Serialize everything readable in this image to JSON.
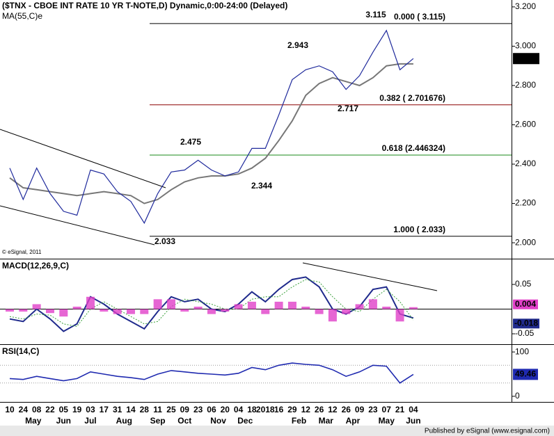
{
  "chart_data": [
    {
      "type": "line",
      "title": "($TNX - CBOE INT RATE 10 YR T-NOTE,D) Dynamic,0:00-24:00 (Delayed)",
      "credit": "© eSignal, 2011",
      "categories": [
        "10",
        "24",
        "08",
        "22",
        "05",
        "19",
        "03",
        "17",
        "31",
        "14",
        "28",
        "11",
        "25",
        "09",
        "23",
        "06",
        "20",
        "04",
        "18",
        "2018",
        "16",
        "29",
        "12",
        "26",
        "12",
        "26",
        "09",
        "23",
        "07",
        "21",
        "04"
      ],
      "months": [
        "May",
        "Jun",
        "Jul",
        "Aug",
        "Sep",
        "Oct",
        "Nov",
        "Dec",
        "Feb",
        "Mar",
        "Apr",
        "May",
        "Jun"
      ],
      "values": [
        2.38,
        2.22,
        2.38,
        2.25,
        2.16,
        2.14,
        2.37,
        2.35,
        2.26,
        2.21,
        2.1,
        2.25,
        2.36,
        2.37,
        2.42,
        2.37,
        2.34,
        2.36,
        2.48,
        2.48,
        2.65,
        2.83,
        2.88,
        2.9,
        2.87,
        2.78,
        2.85,
        2.97,
        3.08,
        2.88,
        2.937
      ],
      "color": "#1f2a9c",
      "series": [
        {
          "name": "MA(55,C)e",
          "color": "#777777",
          "values": [
            2.33,
            2.28,
            2.27,
            2.26,
            2.25,
            2.24,
            2.25,
            2.26,
            2.25,
            2.24,
            2.2,
            2.22,
            2.27,
            2.31,
            2.33,
            2.34,
            2.34,
            2.35,
            2.38,
            2.43,
            2.52,
            2.62,
            2.75,
            2.81,
            2.84,
            2.82,
            2.8,
            2.84,
            2.9,
            2.91,
            2.91
          ]
        }
      ],
      "ylim": [
        1.919,
        3.235
      ],
      "yticks": [
        {
          "value": 2.0,
          "label": "2.000"
        },
        {
          "value": 2.2,
          "label": "2.200"
        },
        {
          "value": 2.4,
          "label": "2.400"
        },
        {
          "value": 2.6,
          "label": "2.600"
        },
        {
          "value": 2.8,
          "label": "2.800"
        },
        {
          "value": 3.0,
          "label": "3.000"
        },
        {
          "value": 3.2,
          "label": "3.200"
        }
      ],
      "levels": [
        {
          "value": 3.115,
          "label": "0.000 ( 3.115)",
          "color": "#000000"
        },
        {
          "value": 2.701676,
          "label": "0.382 ( 2.701676)",
          "color": "#8b0000"
        },
        {
          "value": 2.446324,
          "label": "0.618 (2.446324)",
          "color": "#1a8a1a"
        },
        {
          "value": 2.033,
          "label": "1.000 ( 2.033)",
          "color": "#000000"
        }
      ],
      "swing_labels": [
        3.115,
        2.943,
        2.717,
        2.475,
        2.344,
        2.033
      ]
    },
    {
      "type": "line",
      "title": "MACD(12,26,9,C)",
      "series": [
        {
          "color": "#1f2a8c",
          "values": [
            -0.02,
            -0.025,
            0.0,
            -0.02,
            -0.045,
            -0.03,
            0.025,
            0.01,
            -0.01,
            -0.025,
            -0.04,
            -0.005,
            0.025,
            0.015,
            0.02,
            0.0,
            -0.005,
            0.01,
            0.035,
            0.015,
            0.04,
            0.06,
            0.065,
            0.045,
            0.0,
            -0.01,
            0.005,
            0.04,
            0.045,
            -0.01,
            -0.018
          ]
        },
        {
          "color": "#3aa03a",
          "values": [
            -0.015,
            -0.02,
            -0.01,
            -0.012,
            -0.03,
            -0.035,
            0.0,
            0.015,
            0.0,
            -0.015,
            -0.03,
            -0.025,
            0.005,
            0.02,
            0.015,
            0.01,
            0.0,
            0.0,
            0.02,
            0.025,
            0.025,
            0.045,
            0.06,
            0.055,
            0.025,
            0.0,
            -0.005,
            0.02,
            0.04,
            0.015,
            -0.022
          ]
        },
        {
          "type": "bar",
          "color": "#e040c8",
          "values": [
            -0.005,
            -0.005,
            0.01,
            -0.008,
            -0.015,
            0.005,
            0.025,
            -0.005,
            -0.01,
            -0.01,
            -0.01,
            0.02,
            0.02,
            -0.005,
            0.005,
            -0.01,
            -0.005,
            0.01,
            0.015,
            -0.01,
            0.015,
            0.015,
            0.005,
            -0.01,
            -0.025,
            -0.01,
            0.01,
            0.02,
            0.005,
            -0.025,
            0.004
          ]
        }
      ],
      "ylim": [
        -0.0711,
        0.1008
      ],
      "yticks": [
        -0.05,
        0.05
      ]
    },
    {
      "type": "line",
      "title": "RSI(14,C)",
      "series": [
        {
          "color": "#1f2ab0",
          "values": [
            40,
            38,
            45,
            40,
            35,
            40,
            55,
            50,
            45,
            42,
            38,
            50,
            58,
            55,
            52,
            50,
            48,
            52,
            65,
            60,
            70,
            75,
            72,
            70,
            60,
            45,
            55,
            70,
            68,
            30,
            49.46
          ]
        }
      ],
      "reference_lines": [
        30,
        70
      ],
      "ylim": [
        -11.1,
        115.9
      ],
      "yticks": [
        0,
        100
      ]
    }
  ],
  "footer": "Published by eSignal (www.esignal.com)"
}
